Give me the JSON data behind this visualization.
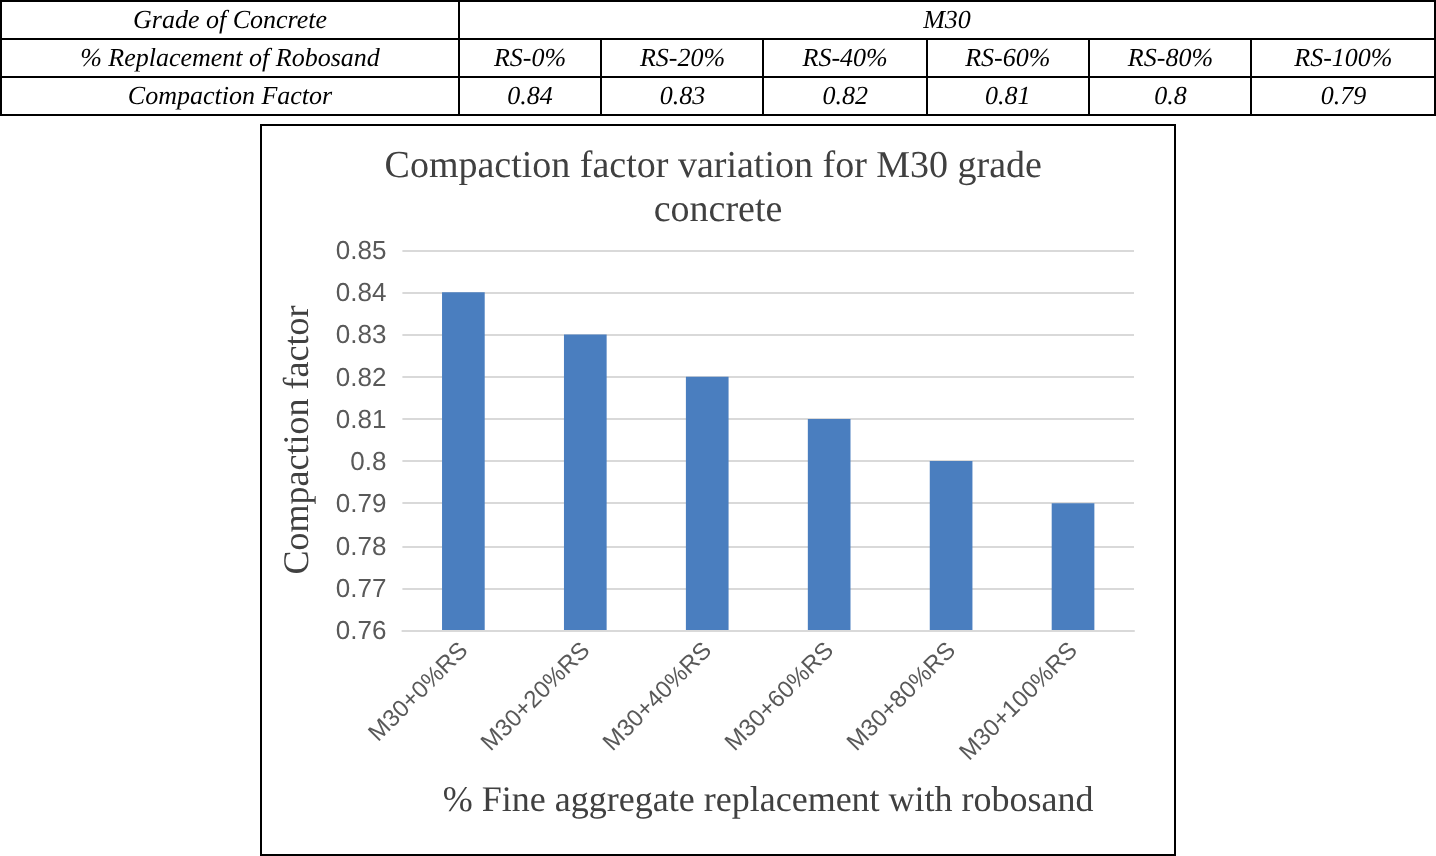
{
  "chart_data": {
    "type": "bar",
    "title": "Compaction factor variation for M30 grade concrete",
    "xlabel": "% Fine aggregate replacement with robosand",
    "ylabel": "Compaction factor",
    "categories": [
      "M30+0%RS",
      "M30+20%RS",
      "M30+40%RS",
      "M30+60%RS",
      "M30+80%RS",
      "M30+100%RS"
    ],
    "values": [
      0.84,
      0.83,
      0.82,
      0.81,
      0.8,
      0.79
    ],
    "color": "#4a7ebf",
    "ylim": [
      0.76,
      0.85
    ],
    "yticks": [
      0.76,
      0.77,
      0.78,
      0.79,
      0.8,
      0.81,
      0.82,
      0.83,
      0.84,
      0.85
    ],
    "grid": "y",
    "annotations": [
      "Grade of Concrete",
      "M30",
      "% Replacement of  Robosand",
      "RS-0%",
      "RS-20%",
      "RS-40%",
      "RS-60%",
      "RS-80%",
      "RS-100%",
      "Compaction Factor",
      "0.84",
      "0.83",
      "0.82",
      "0.81",
      "0.8",
      "0.79"
    ]
  }
}
